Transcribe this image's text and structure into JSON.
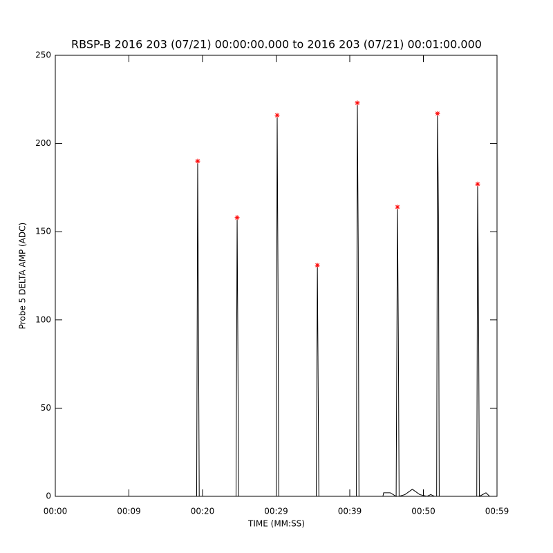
{
  "chart_data": {
    "type": "line",
    "title": "RBSP-B 2016 203 (07/21) 00:00:00.000 to 2016 203 (07/21) 00:01:00.000",
    "x_label": "TIME (MM:SS)",
    "y_label": "Probe 5 DELTA AMP (ADC)",
    "xlim": [
      0,
      60
    ],
    "xticks": [
      {
        "value": 0,
        "label": "00:00"
      },
      {
        "value": 10,
        "label": "00:09"
      },
      {
        "value": 20,
        "label": "00:20"
      },
      {
        "value": 30,
        "label": "00:29"
      },
      {
        "value": 40,
        "label": "00:39"
      },
      {
        "value": 50,
        "label": "00:50"
      },
      {
        "value": 60,
        "label": "00:59"
      }
    ],
    "ylim": [
      0,
      250
    ],
    "yticks": [
      0,
      50,
      100,
      150,
      200,
      250
    ],
    "series": [
      {
        "kind": "line",
        "color": "#000000",
        "x": [
          0,
          19.2,
          19.34,
          19.45,
          19.55,
          24.55,
          24.7,
          24.8,
          24.9,
          30.0,
          30.14,
          30.25,
          30.35,
          35.45,
          35.6,
          35.7,
          35.8,
          40.9,
          41.03,
          41.15,
          41.25,
          44.5,
          44.6,
          45.5,
          46.3,
          46.48,
          46.6,
          46.7,
          47.5,
          48.5,
          49.5,
          50.5,
          51.0,
          51.5,
          51.8,
          51.92,
          52.05,
          52.15,
          57.25,
          57.37,
          57.5,
          57.6,
          58.5,
          59,
          60
        ],
        "values": [
          0,
          0,
          190,
          98,
          0,
          0,
          158,
          84,
          0,
          0,
          216,
          122,
          0,
          0,
          131,
          66,
          0,
          0,
          223,
          141,
          0,
          0,
          2,
          2,
          0,
          164,
          90,
          0,
          1,
          4,
          1,
          0,
          1,
          0,
          0,
          217,
          159,
          0,
          0,
          177,
          104,
          0,
          2,
          0,
          0
        ]
      },
      {
        "kind": "scatter",
        "color": "#ff0000",
        "x": [
          19.34,
          24.7,
          30.14,
          35.6,
          41.03,
          46.48,
          51.92,
          57.37
        ],
        "values": [
          190,
          158,
          216,
          131,
          223,
          164,
          217,
          177
        ]
      }
    ]
  }
}
